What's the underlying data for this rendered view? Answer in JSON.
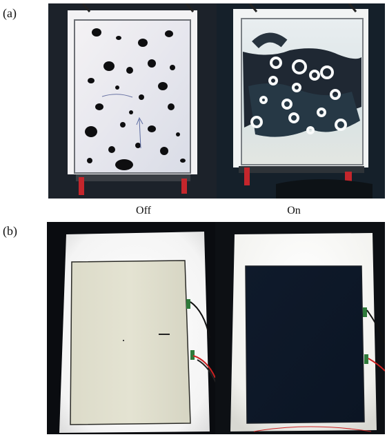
{
  "panel_a": {
    "label": "(a)",
    "captions": {
      "left": "Off",
      "right": "On"
    }
  },
  "panel_b": {
    "label": "(b)"
  },
  "icons": {
    "panel_a_left": "photo-device-off-icon",
    "panel_a_right": "photo-device-on-icon",
    "panel_b_left": "photo-backlit-off-icon",
    "panel_b_right": "photo-backlit-on-icon"
  }
}
